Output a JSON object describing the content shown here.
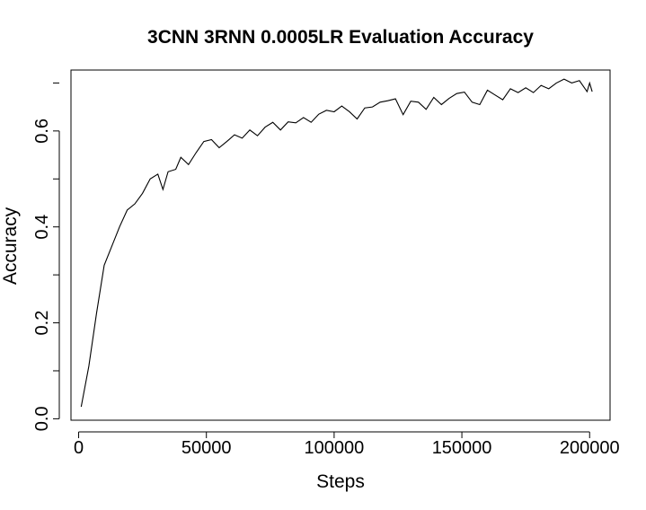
{
  "chart_data": {
    "type": "line",
    "title": "3CNN 3RNN 0.0005LR Evaluation Accuracy",
    "xlabel": "Steps",
    "ylabel": "Accuracy",
    "xlim": [
      -3000,
      208000
    ],
    "ylim": [
      -0.003,
      0.727
    ],
    "xticks": [
      0,
      50000,
      100000,
      150000,
      200000
    ],
    "xtick_labels": [
      "0",
      "50000",
      "100000",
      "150000",
      "200000"
    ],
    "yticks": [
      0.0,
      0.2,
      0.4,
      0.6
    ],
    "ytick_labels": [
      "0.0",
      "0.2",
      "0.4",
      "0.6"
    ],
    "grid": false,
    "series": [
      {
        "x": [
          1000,
          4000,
          7000,
          10000,
          13000,
          16000,
          19000,
          22000,
          25000,
          28000,
          31000,
          33000,
          35000,
          38000,
          40000,
          43000,
          46000,
          49000,
          52000,
          55000,
          58000,
          61000,
          64000,
          67000,
          70000,
          73000,
          76000,
          79000,
          82000,
          85000,
          88000,
          91000,
          94000,
          97000,
          100000,
          103000,
          106000,
          109000,
          112000,
          115000,
          118000,
          121000,
          124000,
          127000,
          130000,
          133000,
          136000,
          139000,
          142000,
          145000,
          148000,
          151000,
          154000,
          157000,
          160000,
          163000,
          166000,
          169000,
          172000,
          175000,
          178000,
          181000,
          184000,
          187000,
          190000,
          193000,
          196000,
          199000,
          200000,
          201000
        ],
        "y": [
          0.025,
          0.11,
          0.22,
          0.32,
          0.36,
          0.4,
          0.435,
          0.448,
          0.47,
          0.5,
          0.51,
          0.478,
          0.515,
          0.52,
          0.545,
          0.53,
          0.555,
          0.578,
          0.582,
          0.565,
          0.578,
          0.592,
          0.585,
          0.602,
          0.59,
          0.608,
          0.618,
          0.602,
          0.619,
          0.617,
          0.628,
          0.618,
          0.635,
          0.643,
          0.64,
          0.652,
          0.64,
          0.625,
          0.648,
          0.65,
          0.66,
          0.663,
          0.667,
          0.634,
          0.662,
          0.66,
          0.645,
          0.67,
          0.655,
          0.668,
          0.678,
          0.681,
          0.66,
          0.655,
          0.685,
          0.675,
          0.665,
          0.688,
          0.68,
          0.69,
          0.68,
          0.695,
          0.688,
          0.7,
          0.708,
          0.7,
          0.705,
          0.682,
          0.7,
          0.682
        ]
      }
    ]
  }
}
